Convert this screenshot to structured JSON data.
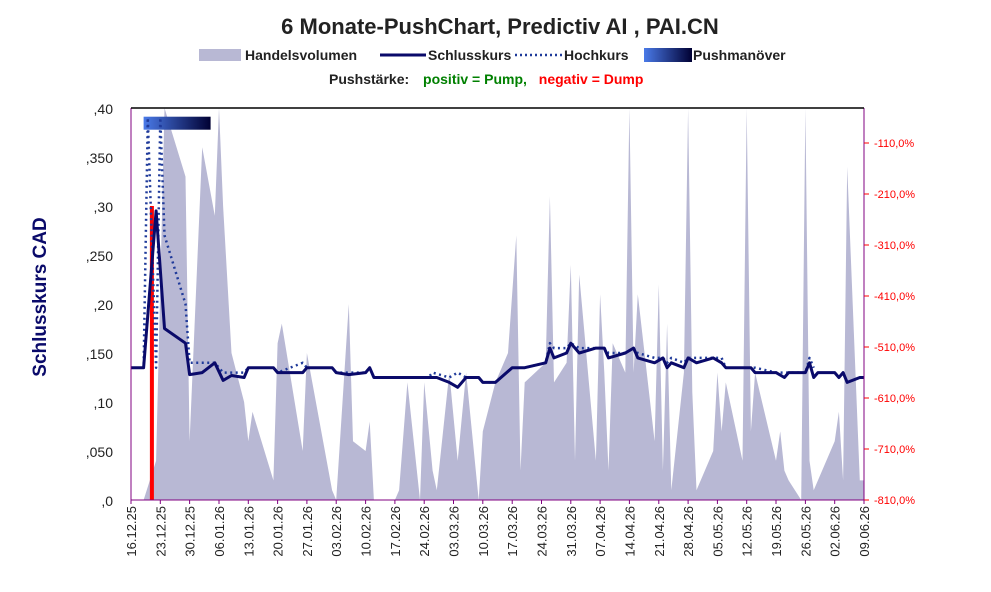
{
  "chart_data": {
    "type": "line",
    "title": "6 Monate-PushChart, Predictiv AI , PAI.CN",
    "legend": {
      "placement": "top",
      "entries": [
        "Handelsvolumen",
        "Schlusskurs",
        "Hochkurs",
        "Pushmanöver"
      ]
    },
    "subtitle": {
      "prefix": "Pushstärke:",
      "positive": "positiv = Pump,",
      "negative": "negativ = Dump"
    },
    "ylabel": "Schlusskurs CAD",
    "ylim": [
      0,
      0.4
    ],
    "y_ticks": [
      ",0",
      ",050",
      ",10",
      ",150",
      ",20",
      ",250",
      ",30",
      ",350",
      ",40"
    ],
    "y2_ticks": [
      "-110,0%",
      "-210,0%",
      "-310,0%",
      "-410,0%",
      "-510,0%",
      "-610,0%",
      "-710,0%",
      "-810,0%"
    ],
    "x_ticks": [
      "16.12.25",
      "23.12.25",
      "30.12.25",
      "06.01.26",
      "13.01.26",
      "20.01.26",
      "27.01.26",
      "03.02.26",
      "10.02.26",
      "17.02.26",
      "24.02.26",
      "03.03.26",
      "10.03.26",
      "17.03.26",
      "24.03.26",
      "31.03.26",
      "07.04.26",
      "14.04.26",
      "21.04.26",
      "28.04.26",
      "05.05.26",
      "12.05.26",
      "19.05.26",
      "26.05.26",
      "02.06.26",
      "09.06.26"
    ],
    "x_start": "2025-12-16",
    "x_end": "2026-06-09",
    "grid": false,
    "colors": {
      "volume": "#b8b8d4",
      "close": "#0a0a6a",
      "high": "#1f3a9a",
      "push_start": "#4a7ae8",
      "push_end": "#000033",
      "pump": "#008000",
      "dump": "#ff0000",
      "y2_axis": "#ff0000",
      "frame": "#800080"
    },
    "series": [
      {
        "name": "Schlusskurs",
        "points": [
          [
            "2025-12-16",
            0.135
          ],
          [
            "2025-12-19",
            0.135
          ],
          [
            "2025-12-22",
            0.295
          ],
          [
            "2025-12-24",
            0.175
          ],
          [
            "2025-12-29",
            0.16
          ],
          [
            "2025-12-30",
            0.128
          ],
          [
            "2026-01-02",
            0.13
          ],
          [
            "2026-01-05",
            0.14
          ],
          [
            "2026-01-07",
            0.122
          ],
          [
            "2026-01-09",
            0.127
          ],
          [
            "2026-01-12",
            0.125
          ],
          [
            "2026-01-13",
            0.135
          ],
          [
            "2026-01-19",
            0.135
          ],
          [
            "2026-01-20",
            0.13
          ],
          [
            "2026-01-26",
            0.13
          ],
          [
            "2026-01-27",
            0.135
          ],
          [
            "2026-02-02",
            0.135
          ],
          [
            "2026-02-03",
            0.13
          ],
          [
            "2026-02-06",
            0.128
          ],
          [
            "2026-02-10",
            0.13
          ],
          [
            "2026-02-11",
            0.135
          ],
          [
            "2026-02-12",
            0.125
          ],
          [
            "2026-02-27",
            0.125
          ],
          [
            "2026-03-02",
            0.12
          ],
          [
            "2026-03-04",
            0.115
          ],
          [
            "2026-03-06",
            0.125
          ],
          [
            "2026-03-09",
            0.125
          ],
          [
            "2026-03-10",
            0.12
          ],
          [
            "2026-03-13",
            0.12
          ],
          [
            "2026-03-17",
            0.135
          ],
          [
            "2026-03-20",
            0.135
          ],
          [
            "2026-03-25",
            0.14
          ],
          [
            "2026-03-26",
            0.155
          ],
          [
            "2026-03-27",
            0.145
          ],
          [
            "2026-03-30",
            0.15
          ],
          [
            "2026-03-31",
            0.16
          ],
          [
            "2026-04-02",
            0.15
          ],
          [
            "2026-04-06",
            0.155
          ],
          [
            "2026-04-08",
            0.155
          ],
          [
            "2026-04-09",
            0.145
          ],
          [
            "2026-04-13",
            0.15
          ],
          [
            "2026-04-15",
            0.155
          ],
          [
            "2026-04-16",
            0.145
          ],
          [
            "2026-04-20",
            0.14
          ],
          [
            "2026-04-22",
            0.145
          ],
          [
            "2026-04-23",
            0.135
          ],
          [
            "2026-04-24",
            0.14
          ],
          [
            "2026-04-27",
            0.135
          ],
          [
            "2026-04-28",
            0.145
          ],
          [
            "2026-04-30",
            0.14
          ],
          [
            "2026-05-04",
            0.145
          ],
          [
            "2026-05-06",
            0.14
          ],
          [
            "2026-05-07",
            0.135
          ],
          [
            "2026-05-13",
            0.135
          ],
          [
            "2026-05-14",
            0.13
          ],
          [
            "2026-05-19",
            0.13
          ],
          [
            "2026-05-21",
            0.125
          ],
          [
            "2026-05-22",
            0.13
          ],
          [
            "2026-05-26",
            0.13
          ],
          [
            "2026-05-27",
            0.14
          ],
          [
            "2026-05-28",
            0.125
          ],
          [
            "2026-05-29",
            0.13
          ],
          [
            "2026-06-02",
            0.13
          ],
          [
            "2026-06-03",
            0.125
          ],
          [
            "2026-06-04",
            0.13
          ],
          [
            "2026-06-05",
            0.12
          ],
          [
            "2026-06-08",
            0.125
          ],
          [
            "2026-06-09",
            0.125
          ]
        ]
      },
      {
        "name": "Hochkurs",
        "points": [
          [
            "2025-12-16",
            0.135
          ],
          [
            "2025-12-19",
            0.135
          ],
          [
            "2025-12-20",
            0.39
          ],
          [
            "2025-12-22",
            0.135
          ],
          [
            "2025-12-23",
            0.39
          ],
          [
            "2025-12-24",
            0.27
          ],
          [
            "2025-12-29",
            0.2
          ],
          [
            "2025-12-30",
            0.14
          ],
          [
            "2026-01-02",
            0.14
          ],
          [
            "2026-01-05",
            0.14
          ],
          [
            "2026-01-07",
            0.13
          ],
          [
            "2026-01-09",
            0.13
          ],
          [
            "2026-01-12",
            0.13
          ],
          [
            "2026-01-13",
            0.135
          ],
          [
            "2026-01-19",
            0.135
          ],
          [
            "2026-01-20",
            0.13
          ],
          [
            "2026-01-26",
            0.14
          ],
          [
            "2026-01-27",
            0.135
          ],
          [
            "2026-02-02",
            0.135
          ],
          [
            "2026-02-03",
            0.13
          ],
          [
            "2026-02-06",
            0.13
          ],
          [
            "2026-02-10",
            0.13
          ],
          [
            "2026-02-11",
            0.135
          ],
          [
            "2026-02-12",
            0.125
          ],
          [
            "2026-02-25",
            0.125
          ],
          [
            "2026-02-26",
            0.13
          ],
          [
            "2026-03-02",
            0.125
          ],
          [
            "2026-03-04",
            0.13
          ],
          [
            "2026-03-06",
            0.125
          ],
          [
            "2026-03-09",
            0.125
          ],
          [
            "2026-03-10",
            0.12
          ],
          [
            "2026-03-13",
            0.12
          ],
          [
            "2026-03-17",
            0.135
          ],
          [
            "2026-03-20",
            0.135
          ],
          [
            "2026-03-25",
            0.14
          ],
          [
            "2026-03-26",
            0.16
          ],
          [
            "2026-03-27",
            0.155
          ],
          [
            "2026-03-30",
            0.155
          ],
          [
            "2026-03-31",
            0.16
          ],
          [
            "2026-04-02",
            0.155
          ],
          [
            "2026-04-06",
            0.155
          ],
          [
            "2026-04-08",
            0.155
          ],
          [
            "2026-04-09",
            0.15
          ],
          [
            "2026-04-13",
            0.15
          ],
          [
            "2026-04-15",
            0.155
          ],
          [
            "2026-04-16",
            0.15
          ],
          [
            "2026-04-20",
            0.145
          ],
          [
            "2026-04-22",
            0.145
          ],
          [
            "2026-04-23",
            0.14
          ],
          [
            "2026-04-24",
            0.145
          ],
          [
            "2026-04-27",
            0.14
          ],
          [
            "2026-04-28",
            0.145
          ],
          [
            "2026-04-30",
            0.145
          ],
          [
            "2026-05-04",
            0.145
          ],
          [
            "2026-05-06",
            0.145
          ],
          [
            "2026-05-07",
            0.135
          ],
          [
            "2026-05-13",
            0.135
          ],
          [
            "2026-05-14",
            0.135
          ],
          [
            "2026-05-19",
            0.13
          ],
          [
            "2026-05-21",
            0.13
          ],
          [
            "2026-05-22",
            0.13
          ],
          [
            "2026-05-26",
            0.13
          ],
          [
            "2026-05-27",
            0.145
          ],
          [
            "2026-05-28",
            0.135
          ]
        ]
      },
      {
        "name": "Handelsvolumen",
        "points": [
          [
            "2025-12-16",
            0.0
          ],
          [
            "2025-12-19",
            0.0
          ],
          [
            "2025-12-22",
            0.04
          ],
          [
            "2025-12-24",
            0.44
          ],
          [
            "2025-12-29",
            0.33
          ],
          [
            "2025-12-30",
            0.06
          ],
          [
            "2026-01-02",
            0.36
          ],
          [
            "2026-01-05",
            0.29
          ],
          [
            "2026-01-06",
            0.4
          ],
          [
            "2026-01-07",
            0.3
          ],
          [
            "2026-01-09",
            0.15
          ],
          [
            "2026-01-12",
            0.1
          ],
          [
            "2026-01-13",
            0.06
          ],
          [
            "2026-01-14",
            0.09
          ],
          [
            "2026-01-19",
            0.02
          ],
          [
            "2026-01-20",
            0.16
          ],
          [
            "2026-01-21",
            0.18
          ],
          [
            "2026-01-26",
            0.05
          ],
          [
            "2026-01-27",
            0.15
          ],
          [
            "2026-02-02",
            0.01
          ],
          [
            "2026-02-03",
            0.0
          ],
          [
            "2026-02-06",
            0.2
          ],
          [
            "2026-02-07",
            0.06
          ],
          [
            "2026-02-10",
            0.05
          ],
          [
            "2026-02-11",
            0.08
          ],
          [
            "2026-02-12",
            0.0
          ],
          [
            "2026-02-17",
            0.0
          ],
          [
            "2026-02-18",
            0.01
          ],
          [
            "2026-02-20",
            0.12
          ],
          [
            "2026-02-23",
            0.0
          ],
          [
            "2026-02-24",
            0.12
          ],
          [
            "2026-02-26",
            0.03
          ],
          [
            "2026-02-27",
            0.01
          ],
          [
            "2026-03-02",
            0.13
          ],
          [
            "2026-03-04",
            0.04
          ],
          [
            "2026-03-06",
            0.13
          ],
          [
            "2026-03-09",
            0.0
          ],
          [
            "2026-03-10",
            0.07
          ],
          [
            "2026-03-13",
            0.12
          ],
          [
            "2026-03-16",
            0.15
          ],
          [
            "2026-03-18",
            0.27
          ],
          [
            "2026-03-19",
            0.03
          ],
          [
            "2026-03-20",
            0.12
          ],
          [
            "2026-03-25",
            0.14
          ],
          [
            "2026-03-26",
            0.31
          ],
          [
            "2026-03-27",
            0.12
          ],
          [
            "2026-03-30",
            0.14
          ],
          [
            "2026-03-31",
            0.24
          ],
          [
            "2026-04-01",
            0.04
          ],
          [
            "2026-04-02",
            0.23
          ],
          [
            "2026-04-06",
            0.04
          ],
          [
            "2026-04-07",
            0.21
          ],
          [
            "2026-04-08",
            0.13
          ],
          [
            "2026-04-09",
            0.03
          ],
          [
            "2026-04-10",
            0.16
          ],
          [
            "2026-04-13",
            0.13
          ],
          [
            "2026-04-14",
            0.4
          ],
          [
            "2026-04-15",
            0.13
          ],
          [
            "2026-04-16",
            0.21
          ],
          [
            "2026-04-20",
            0.06
          ],
          [
            "2026-04-21",
            0.22
          ],
          [
            "2026-04-22",
            0.03
          ],
          [
            "2026-04-23",
            0.18
          ],
          [
            "2026-04-24",
            0.01
          ],
          [
            "2026-04-27",
            0.13
          ],
          [
            "2026-04-28",
            0.4
          ],
          [
            "2026-04-29",
            0.11
          ],
          [
            "2026-04-30",
            0.01
          ],
          [
            "2026-05-04",
            0.05
          ],
          [
            "2026-05-05",
            0.13
          ],
          [
            "2026-05-06",
            0.07
          ],
          [
            "2026-05-07",
            0.12
          ],
          [
            "2026-05-11",
            0.04
          ],
          [
            "2026-05-12",
            0.4
          ],
          [
            "2026-05-13",
            0.07
          ],
          [
            "2026-05-14",
            0.13
          ],
          [
            "2026-05-19",
            0.04
          ],
          [
            "2026-05-20",
            0.07
          ],
          [
            "2026-05-21",
            0.03
          ],
          [
            "2026-05-22",
            0.02
          ],
          [
            "2026-05-25",
            0.0
          ],
          [
            "2026-05-26",
            0.4
          ],
          [
            "2026-05-27",
            0.04
          ],
          [
            "2026-05-28",
            0.01
          ],
          [
            "2026-06-02",
            0.06
          ],
          [
            "2026-06-03",
            0.09
          ],
          [
            "2026-06-04",
            0.02
          ],
          [
            "2026-06-05",
            0.34
          ],
          [
            "2026-06-08",
            0.02
          ],
          [
            "2026-06-09",
            0.02
          ]
        ]
      },
      {
        "name": "Pushmanöver",
        "points": [
          [
            "2025-12-19",
            0.385
          ],
          [
            "2026-01-04",
            0.385
          ]
        ]
      },
      {
        "name": "Pushstärke",
        "points": [
          [
            "2025-12-21",
            0.0
          ],
          [
            "2025-12-21",
            0.3
          ]
        ]
      }
    ]
  }
}
